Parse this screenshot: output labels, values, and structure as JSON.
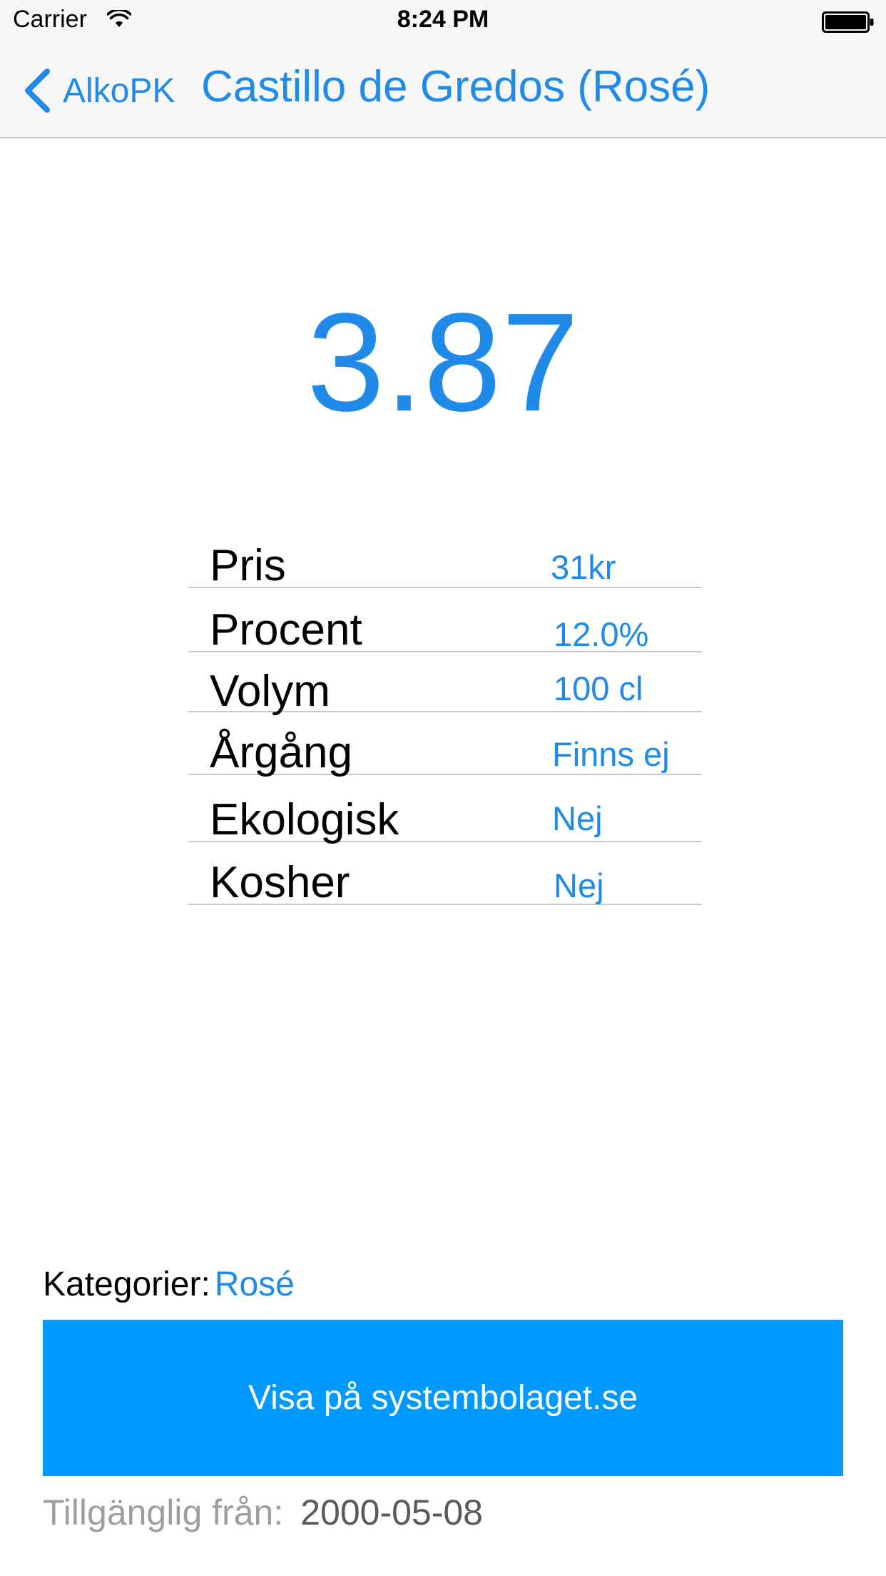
{
  "status_bar": {
    "carrier": "Carrier",
    "time": "8:24 PM",
    "icons": [
      "wifi-icon",
      "battery-icon"
    ]
  },
  "nav": {
    "back_label": "AlkoPK",
    "title": "Castillo de Gredos (Rosé)",
    "accent_color": "#1f8ae8"
  },
  "score": "3.87",
  "info_rows": [
    {
      "label": "Pris",
      "value": "31kr"
    },
    {
      "label": "Procent",
      "value": "12.0%"
    },
    {
      "label": "Volym",
      "value": "100 cl"
    },
    {
      "label": "Årgång",
      "value": "Finns ej"
    },
    {
      "label": "Ekologisk",
      "value": "Nej"
    },
    {
      "label": "Kosher",
      "value": "Nej"
    }
  ],
  "categories": {
    "label": "Kategorier:",
    "value": "Rosé"
  },
  "button": {
    "label": "Visa på systembolaget.se",
    "color": "#0099ff"
  },
  "available": {
    "label": "Tillgänglig från:",
    "value": "2000-05-08"
  }
}
